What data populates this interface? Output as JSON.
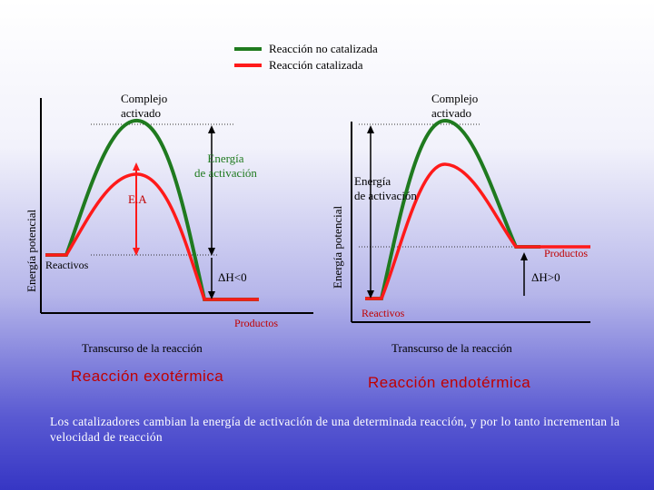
{
  "legend": {
    "items": [
      {
        "label": "Reacción no catalizada",
        "color": "#1f7a1f"
      },
      {
        "label": "Reacción catalizada",
        "color": "#ff1a1a"
      }
    ]
  },
  "exotermica": {
    "y_axis_label": "Energía potencial",
    "x_axis_label": "Transcurso de la reacción",
    "title": "Reacción exotérmica",
    "complejo_label": "Complejo\nactivado",
    "energia_label": "Energía\nde activación",
    "ea_label": "E.A",
    "reactivos_label": "Reactivos",
    "delta_label": "ΔH<0",
    "productos_label": "Productos"
  },
  "endotermica": {
    "y_axis_label": "Energía potencial",
    "x_axis_label": "Transcurso de la reacción",
    "title": "Reacción endotérmica",
    "complejo_label": "Complejo\nactivado",
    "energia_label": "Energía\nde activación",
    "productos_label": "Productos",
    "delta_label": "ΔH>0",
    "reactivos_label": "Reactivos"
  },
  "caption": "Los catalizadores cambian la energía de activación de una determinada reacción, y por lo tanto incrementan la velocidad de reacción",
  "colors": {
    "uncatalyzed": "#1f7a1f",
    "catalyzed": "#ff1a1a",
    "axis": "#000000"
  }
}
